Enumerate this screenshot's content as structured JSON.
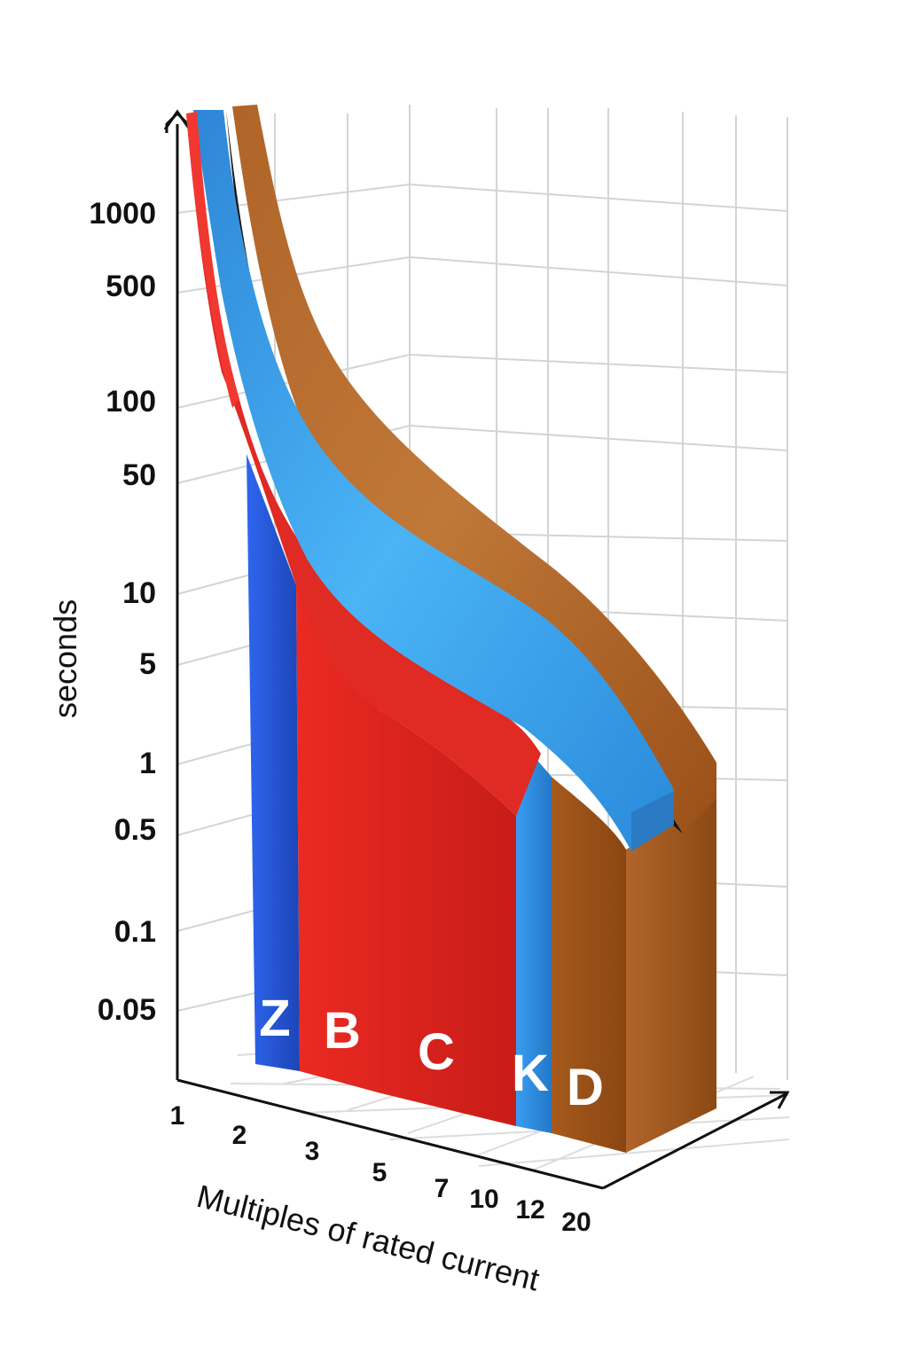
{
  "chart_data": {
    "type": "area",
    "title": "",
    "xlabel": "Multiples of rated current",
    "ylabel": "seconds",
    "x_ticks": [
      "1",
      "2",
      "3",
      "5",
      "7",
      "10",
      "12",
      "20"
    ],
    "y_ticks": [
      "0.05",
      "0.1",
      "0.5",
      "1",
      "5",
      "10",
      "50",
      "100",
      "500",
      "1000"
    ],
    "grid": true,
    "series": [
      {
        "name": "Z",
        "color": "#2456d8",
        "x_range": [
          "2",
          "3"
        ],
        "top_seconds": 50
      },
      {
        "name": "B",
        "color": "#e02420",
        "x_range": [
          "3",
          "5"
        ],
        "top_seconds": 10
      },
      {
        "name": "C",
        "color": "#ff7a00",
        "x_range": [
          "5",
          "10"
        ],
        "top_seconds": 1
      },
      {
        "name": "K",
        "color": "#2f8ee0",
        "x_range": [
          "10",
          "12"
        ],
        "top_seconds": 1
      },
      {
        "name": "D",
        "color": "#9a5018",
        "x_range": [
          "12",
          "20"
        ],
        "top_seconds": 1
      }
    ],
    "curves": [
      {
        "color": "#e83028",
        "points": [
          [
            1,
            3000
          ],
          [
            2,
            100
          ],
          [
            3,
            10
          ],
          [
            5,
            2
          ],
          [
            10,
            0.5
          ]
        ]
      },
      {
        "color": "#39a6ef",
        "points": [
          [
            1,
            3000
          ],
          [
            3,
            60
          ],
          [
            7,
            8
          ],
          [
            12,
            1
          ],
          [
            20,
            0.3
          ]
        ]
      },
      {
        "color": "#a65a22",
        "points": [
          [
            1,
            3000
          ],
          [
            3,
            150
          ],
          [
            7,
            20
          ],
          [
            12,
            3
          ],
          [
            20,
            0.6
          ]
        ]
      }
    ]
  }
}
